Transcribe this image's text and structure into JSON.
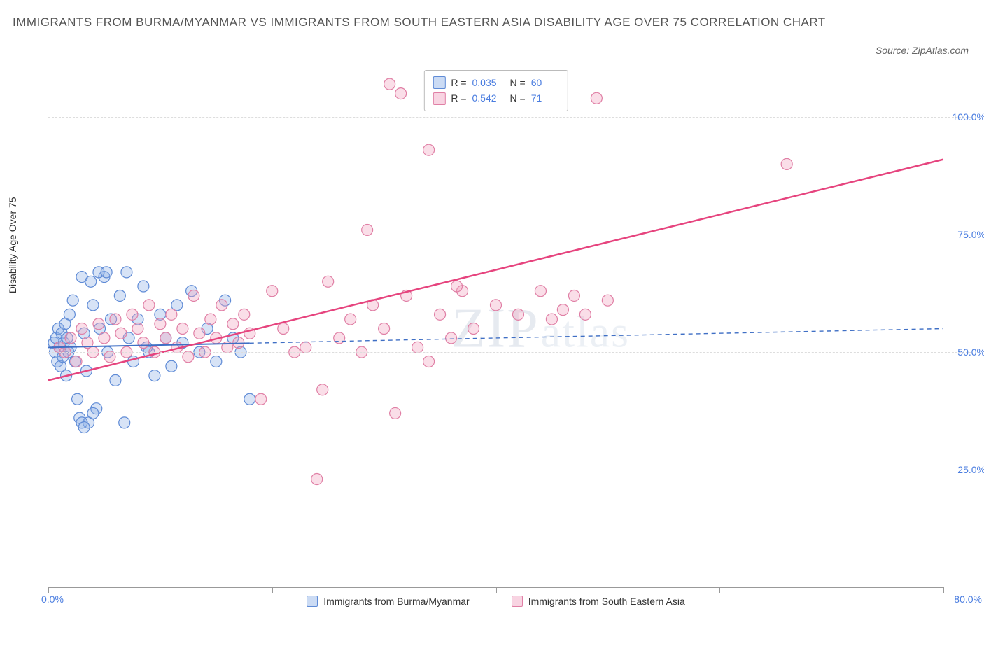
{
  "title": "IMMIGRANTS FROM BURMA/MYANMAR VS IMMIGRANTS FROM SOUTH EASTERN ASIA DISABILITY AGE OVER 75 CORRELATION CHART",
  "source": "Source: ZipAtlas.com",
  "chart": {
    "type": "scatter",
    "ylabel": "Disability Age Over 75",
    "xlim": [
      0,
      80
    ],
    "ylim": [
      0,
      110
    ],
    "ytick_values": [
      25,
      50,
      75,
      100
    ],
    "ytick_labels": [
      "25.0%",
      "50.0%",
      "75.0%",
      "100.0%"
    ],
    "xtick_values": [
      0,
      20,
      40,
      60,
      80
    ],
    "x_edge_labels": [
      "0.0%",
      "80.0%"
    ],
    "background_color": "#ffffff",
    "grid_color": "#dddddd",
    "axis_color": "#999999",
    "tick_label_color": "#4a7de0",
    "label_fontsize": 14,
    "title_fontsize": 17,
    "marker_radius": 8,
    "marker_opacity": 0.55,
    "marker_stroke_width": 1.2,
    "series": [
      {
        "name": "Immigrants from Burma/Myanmar",
        "color_fill": "rgba(140,175,230,0.35)",
        "color_stroke": "#5f8bd6",
        "legend_swatch_fill": "rgba(140,175,230,0.45)",
        "legend_swatch_border": "#5f8bd6",
        "R": "0.035",
        "N": "60",
        "trend": {
          "x1": 0,
          "y1": 51,
          "x2": 18,
          "y2": 52,
          "extend_x2": 80,
          "extend_y2": 55,
          "style": "solid-then-dashed",
          "solid_until_x": 18,
          "width": 2.0,
          "color": "#3f6fc5"
        },
        "points": [
          [
            0.5,
            52
          ],
          [
            0.6,
            50
          ],
          [
            0.7,
            53
          ],
          [
            0.8,
            48
          ],
          [
            0.9,
            55
          ],
          [
            1.0,
            51
          ],
          [
            1.1,
            47
          ],
          [
            1.2,
            54
          ],
          [
            1.3,
            49
          ],
          [
            1.4,
            52
          ],
          [
            1.5,
            56
          ],
          [
            1.6,
            45
          ],
          [
            1.7,
            53
          ],
          [
            1.8,
            50
          ],
          [
            1.9,
            58
          ],
          [
            2.0,
            51
          ],
          [
            2.2,
            61
          ],
          [
            2.4,
            48
          ],
          [
            2.6,
            40
          ],
          [
            2.8,
            36
          ],
          [
            3.0,
            66
          ],
          [
            3.2,
            54
          ],
          [
            3.4,
            46
          ],
          [
            3.6,
            35
          ],
          [
            3.8,
            65
          ],
          [
            4.0,
            60
          ],
          [
            4.3,
            38
          ],
          [
            4.6,
            55
          ],
          [
            5.0,
            66
          ],
          [
            5.3,
            50
          ],
          [
            5.6,
            57
          ],
          [
            6.0,
            44
          ],
          [
            6.4,
            62
          ],
          [
            6.8,
            35
          ],
          [
            7.2,
            53
          ],
          [
            7.6,
            48
          ],
          [
            8.0,
            57
          ],
          [
            8.5,
            64
          ],
          [
            9.0,
            50
          ],
          [
            9.5,
            45
          ],
          [
            10.0,
            58
          ],
          [
            10.5,
            53
          ],
          [
            11.0,
            47
          ],
          [
            11.5,
            60
          ],
          [
            12.0,
            52
          ],
          [
            12.8,
            63
          ],
          [
            13.5,
            50
          ],
          [
            14.2,
            55
          ],
          [
            15.0,
            48
          ],
          [
            15.8,
            61
          ],
          [
            16.5,
            53
          ],
          [
            17.2,
            50
          ],
          [
            18.0,
            40
          ],
          [
            3.0,
            35
          ],
          [
            3.2,
            34
          ],
          [
            4.0,
            37
          ],
          [
            4.5,
            67
          ],
          [
            5.2,
            67
          ],
          [
            7.0,
            67
          ],
          [
            8.8,
            51
          ]
        ]
      },
      {
        "name": "Immigrants from South Eastern Asia",
        "color_fill": "rgba(240,160,190,0.35)",
        "color_stroke": "#e07fa5",
        "legend_swatch_fill": "rgba(240,160,190,0.45)",
        "legend_swatch_border": "#e07fa5",
        "R": "0.542",
        "N": "71",
        "trend": {
          "x1": 0,
          "y1": 44,
          "x2": 80,
          "y2": 91,
          "style": "solid",
          "width": 2.5,
          "color": "#e6447e"
        },
        "points": [
          [
            1.0,
            51
          ],
          [
            1.5,
            50
          ],
          [
            2.0,
            53
          ],
          [
            2.5,
            48
          ],
          [
            3.0,
            55
          ],
          [
            3.5,
            52
          ],
          [
            4.0,
            50
          ],
          [
            4.5,
            56
          ],
          [
            5.0,
            53
          ],
          [
            5.5,
            49
          ],
          [
            6.0,
            57
          ],
          [
            6.5,
            54
          ],
          [
            7.0,
            50
          ],
          [
            7.5,
            58
          ],
          [
            8.0,
            55
          ],
          [
            8.5,
            52
          ],
          [
            9.0,
            60
          ],
          [
            9.5,
            50
          ],
          [
            10.0,
            56
          ],
          [
            10.5,
            53
          ],
          [
            11.0,
            58
          ],
          [
            11.5,
            51
          ],
          [
            12.0,
            55
          ],
          [
            12.5,
            49
          ],
          [
            13.0,
            62
          ],
          [
            13.5,
            54
          ],
          [
            14.0,
            50
          ],
          [
            14.5,
            57
          ],
          [
            15.0,
            53
          ],
          [
            15.5,
            60
          ],
          [
            16.0,
            51
          ],
          [
            16.5,
            56
          ],
          [
            17.0,
            52
          ],
          [
            17.5,
            58
          ],
          [
            18.0,
            54
          ],
          [
            19.0,
            40
          ],
          [
            20.0,
            63
          ],
          [
            21.0,
            55
          ],
          [
            22.0,
            50
          ],
          [
            23.0,
            51
          ],
          [
            24.0,
            23
          ],
          [
            24.5,
            42
          ],
          [
            25.0,
            65
          ],
          [
            26.0,
            53
          ],
          [
            27.0,
            57
          ],
          [
            28.0,
            50
          ],
          [
            28.5,
            76
          ],
          [
            29.0,
            60
          ],
          [
            30.0,
            55
          ],
          [
            31.0,
            37
          ],
          [
            31.5,
            105
          ],
          [
            32.0,
            62
          ],
          [
            33.0,
            51
          ],
          [
            34.0,
            93
          ],
          [
            35.0,
            58
          ],
          [
            36.0,
            53
          ],
          [
            37.0,
            63
          ],
          [
            38.0,
            55
          ],
          [
            40.0,
            60
          ],
          [
            42.0,
            58
          ],
          [
            44.0,
            63
          ],
          [
            45.0,
            57
          ],
          [
            46.0,
            59
          ],
          [
            47.0,
            62
          ],
          [
            48.0,
            58
          ],
          [
            49.0,
            104
          ],
          [
            50.0,
            61
          ],
          [
            66.0,
            90
          ],
          [
            34.0,
            48
          ],
          [
            36.5,
            64
          ],
          [
            30.5,
            107
          ]
        ]
      }
    ],
    "legend_bottom": [
      {
        "label": "Immigrants from Burma/Myanmar",
        "swatch_fill": "rgba(140,175,230,0.45)",
        "swatch_border": "#5f8bd6"
      },
      {
        "label": "Immigrants from South Eastern Asia",
        "swatch_fill": "rgba(240,160,190,0.45)",
        "swatch_border": "#e07fa5"
      }
    ],
    "watermark": {
      "part1": "ZIP",
      "part2": "atlas"
    }
  }
}
